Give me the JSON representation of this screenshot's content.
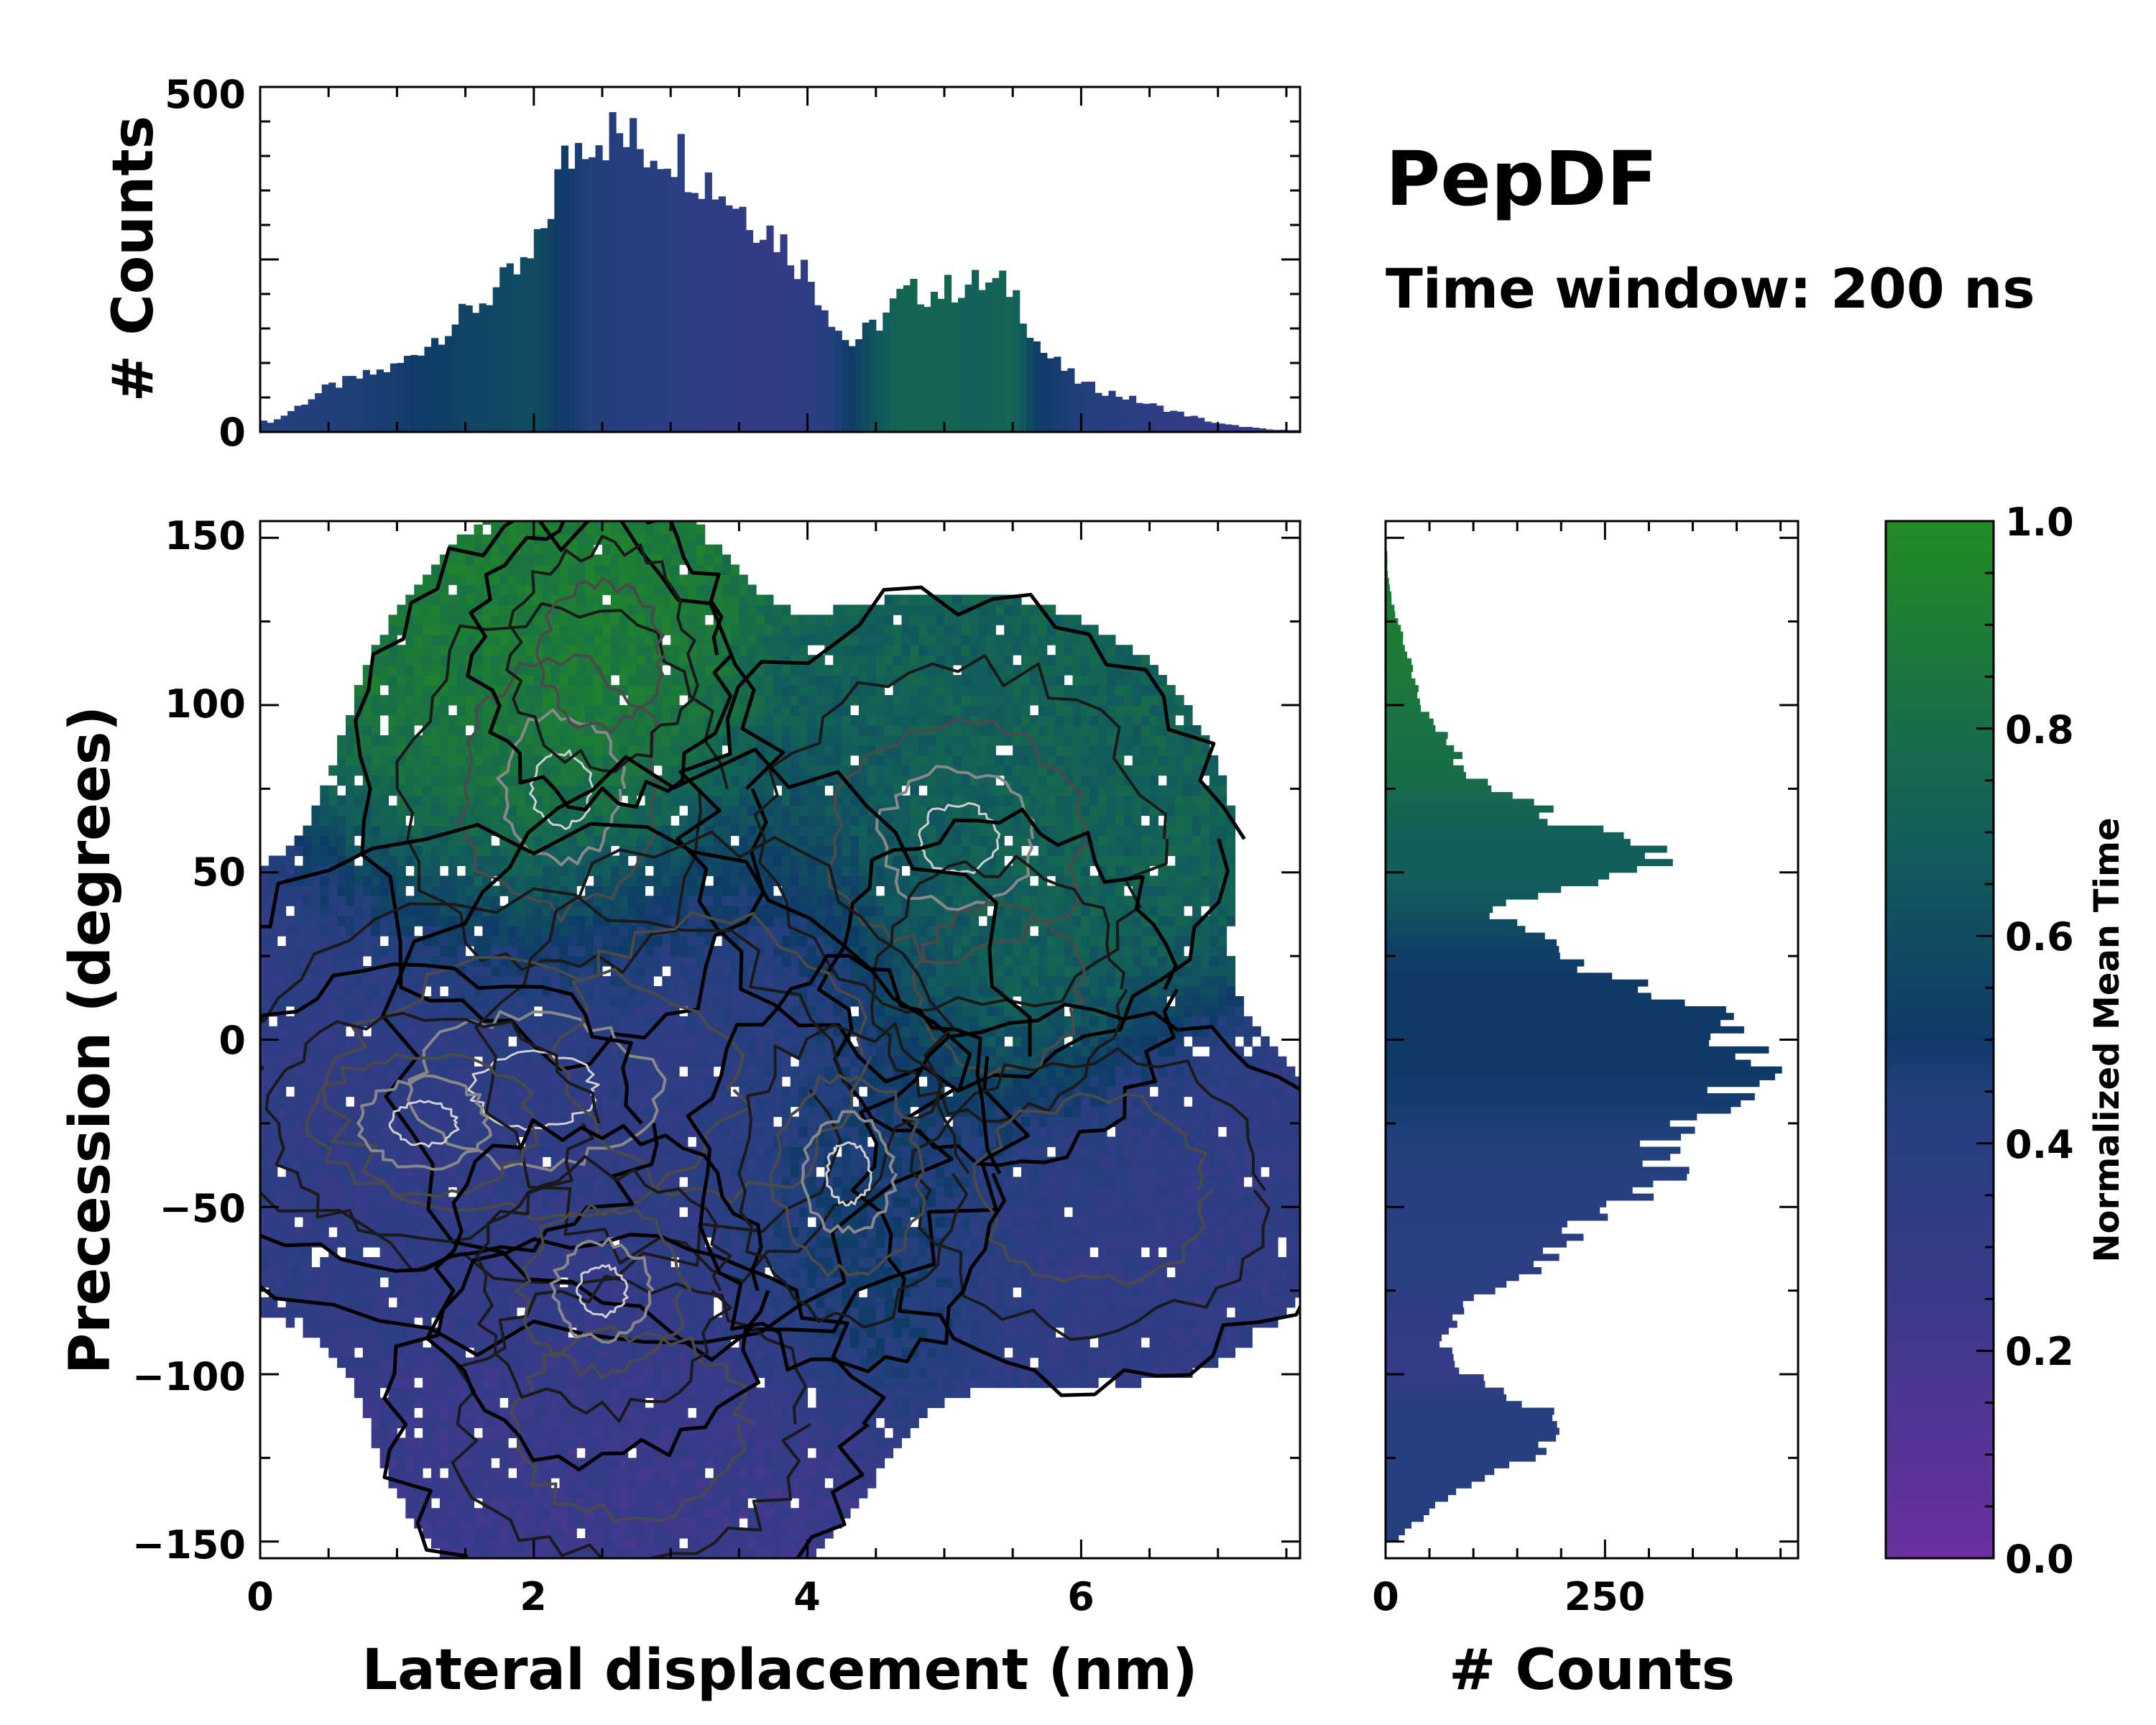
{
  "colors": {
    "low": "#6a2f9e",
    "mid": "#1e3f78",
    "midhigh": "#0d5f5f",
    "high": "#238b24",
    "contour_outer": "#000000",
    "contour_inner": "#888888",
    "contour_core": "#dddddd"
  },
  "figure": {
    "title": "PepDF",
    "subtitle": "Time window: 200 ns"
  },
  "chart_data": [
    {
      "id": "top-histogram",
      "type": "bar",
      "title": "",
      "xlabel": "",
      "ylabel": "# Counts",
      "xlim": [
        0,
        7.6
      ],
      "ylim": [
        0,
        500
      ],
      "yticks": [
        "0",
        "500"
      ],
      "bin_width": 0.05,
      "x": [
        0.1,
        0.5,
        1.0,
        1.5,
        2.0,
        2.2,
        2.4,
        2.6,
        2.8,
        3.0,
        3.2,
        3.5,
        3.8,
        4.0,
        4.3,
        4.5,
        4.7,
        5.0,
        5.2,
        5.5,
        5.7,
        6.0,
        6.5,
        7.0,
        7.4
      ],
      "values": [
        15,
        65,
        95,
        170,
        250,
        380,
        440,
        430,
        410,
        415,
        380,
        330,
        280,
        230,
        125,
        155,
        200,
        205,
        215,
        210,
        120,
        70,
        40,
        12,
        3
      ],
      "color_values": [
        0.45,
        0.45,
        0.48,
        0.55,
        0.6,
        0.5,
        0.45,
        0.42,
        0.4,
        0.38,
        0.35,
        0.33,
        0.32,
        0.35,
        0.5,
        0.65,
        0.75,
        0.75,
        0.7,
        0.75,
        0.5,
        0.45,
        0.35,
        0.3,
        0.3
      ]
    },
    {
      "id": "right-histogram",
      "type": "bar",
      "orientation": "horizontal",
      "xlabel": "# Counts",
      "ylabel": "",
      "xlim": [
        0,
        470
      ],
      "xticks": [
        "0",
        "250"
      ],
      "ylim": [
        -155,
        155
      ],
      "bin_width": 2,
      "y": [
        -150,
        -140,
        -130,
        -120,
        -110,
        -100,
        -90,
        -80,
        -70,
        -60,
        -50,
        -40,
        -30,
        -20,
        -10,
        -5,
        0,
        5,
        10,
        20,
        30,
        40,
        50,
        55,
        60,
        65,
        70,
        80,
        90,
        100,
        110,
        120,
        130,
        140
      ],
      "values": [
        10,
        55,
        120,
        195,
        175,
        95,
        60,
        90,
        160,
        200,
        260,
        330,
        310,
        380,
        420,
        400,
        410,
        380,
        350,
        245,
        180,
        110,
        290,
        305,
        275,
        205,
        170,
        90,
        70,
        40,
        30,
        20,
        8,
        2
      ],
      "color_values": [
        0.45,
        0.42,
        0.4,
        0.42,
        0.4,
        0.3,
        0.3,
        0.35,
        0.38,
        0.38,
        0.4,
        0.42,
        0.45,
        0.48,
        0.5,
        0.5,
        0.5,
        0.5,
        0.5,
        0.5,
        0.55,
        0.65,
        0.7,
        0.7,
        0.7,
        0.72,
        0.75,
        0.8,
        0.82,
        0.85,
        0.88,
        0.9,
        0.9,
        0.9
      ]
    },
    {
      "id": "main-heatmap",
      "type": "heatmap",
      "title": "",
      "xlabel": "Lateral displacement (nm)",
      "ylabel": "Precession (degrees)",
      "xlim": [
        0,
        7.6
      ],
      "ylim": [
        -155,
        155
      ],
      "xticks": [
        "0",
        "2",
        "4",
        "6"
      ],
      "yticks": [
        "150",
        "100",
        "50",
        "0",
        "−50",
        "−100",
        "−150"
      ],
      "grid": false,
      "regions": [
        {
          "name": "upper-left cluster",
          "x": 2.2,
          "y": 75,
          "mean_time": 0.85
        },
        {
          "name": "upper-right cluster",
          "x": 5.1,
          "y": 60,
          "mean_time": 0.7
        },
        {
          "name": "central cluster",
          "x": 2.8,
          "y": -10,
          "mean_time": 0.35
        },
        {
          "name": "lower cluster",
          "x": 2.7,
          "y": -120,
          "mean_time": 0.25
        },
        {
          "name": "right cluster",
          "x": 6.1,
          "y": -45,
          "mean_time": 0.33
        }
      ]
    },
    {
      "id": "colorbar",
      "type": "colorbar",
      "label": "Normalized Mean Time",
      "range": [
        0.0,
        1.0
      ],
      "ticks": [
        "0.0",
        "0.2",
        "0.4",
        "0.6",
        "0.8",
        "1.0"
      ]
    }
  ]
}
